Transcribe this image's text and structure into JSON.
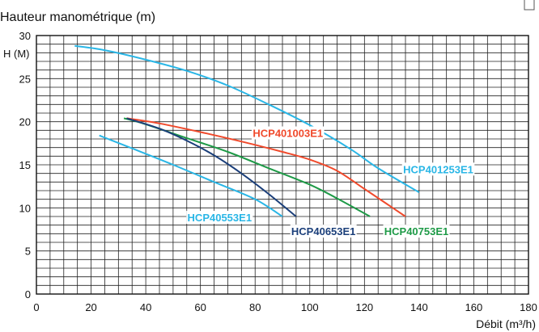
{
  "chart_data": {
    "type": "line",
    "title": "Hauteur manométrique (m)",
    "ylabel": "H (M)",
    "xlabel": "Débit (m³/h)",
    "xlim": [
      0,
      180
    ],
    "ylim": [
      0,
      30
    ],
    "x_ticks": [
      "0",
      "20",
      "40",
      "60",
      "80",
      "100",
      "120",
      "140",
      "160",
      "180"
    ],
    "y_ticks": [
      "0",
      "5",
      "10",
      "15",
      "20",
      "25",
      "30"
    ],
    "grid": true,
    "series": [
      {
        "name": "HCP401253E1",
        "color": "#29b6e6",
        "points": [
          [
            14,
            28.8
          ],
          [
            25,
            28.3
          ],
          [
            40,
            27.2
          ],
          [
            55,
            25.9
          ],
          [
            70,
            24.2
          ],
          [
            85,
            22.0
          ],
          [
            100,
            19.6
          ],
          [
            115,
            16.8
          ],
          [
            125,
            14.6
          ],
          [
            140,
            11.8
          ]
        ]
      },
      {
        "name": "HCP401003E1",
        "color": "#f04a2c",
        "points": [
          [
            33,
            20.4
          ],
          [
            45,
            19.8
          ],
          [
            60,
            18.8
          ],
          [
            75,
            17.7
          ],
          [
            90,
            16.5
          ],
          [
            100,
            15.6
          ],
          [
            110,
            14.3
          ],
          [
            120,
            12.2
          ],
          [
            128,
            10.5
          ],
          [
            135,
            9.0
          ]
        ]
      },
      {
        "name": "HCP40753E1",
        "color": "#1e9a47",
        "points": [
          [
            32,
            20.4
          ],
          [
            40,
            19.7
          ],
          [
            55,
            18.1
          ],
          [
            70,
            16.5
          ],
          [
            85,
            14.6
          ],
          [
            100,
            12.7
          ],
          [
            110,
            11.1
          ],
          [
            122,
            9.0
          ]
        ]
      },
      {
        "name": "HCP40653E1",
        "color": "#1b3f7a",
        "points": [
          [
            33,
            20.4
          ],
          [
            45,
            19.2
          ],
          [
            55,
            17.8
          ],
          [
            65,
            16.1
          ],
          [
            75,
            14.0
          ],
          [
            85,
            11.6
          ],
          [
            95,
            9.0
          ]
        ]
      },
      {
        "name": "HCP40553E1",
        "color": "#29b6e6",
        "points": [
          [
            23,
            18.4
          ],
          [
            35,
            16.9
          ],
          [
            50,
            15.0
          ],
          [
            65,
            13.0
          ],
          [
            80,
            11.0
          ],
          [
            90,
            9.0
          ]
        ]
      }
    ],
    "labels": [
      {
        "text": "HCP401253E1",
        "color": "#29b6e6",
        "x": 147,
        "y": 14.5
      },
      {
        "text": "HCP401003E1",
        "color": "#f04a2c",
        "x": 92,
        "y": 18.7
      },
      {
        "text": "HCP40753E1",
        "color": "#1e9a47",
        "x": 139,
        "y": 7.3
      },
      {
        "text": "HCP40653E1",
        "color": "#1b3f7a",
        "x": 105,
        "y": 7.3
      },
      {
        "text": "HCP40553E1",
        "color": "#29b6e6",
        "x": 67,
        "y": 8.9
      }
    ]
  }
}
